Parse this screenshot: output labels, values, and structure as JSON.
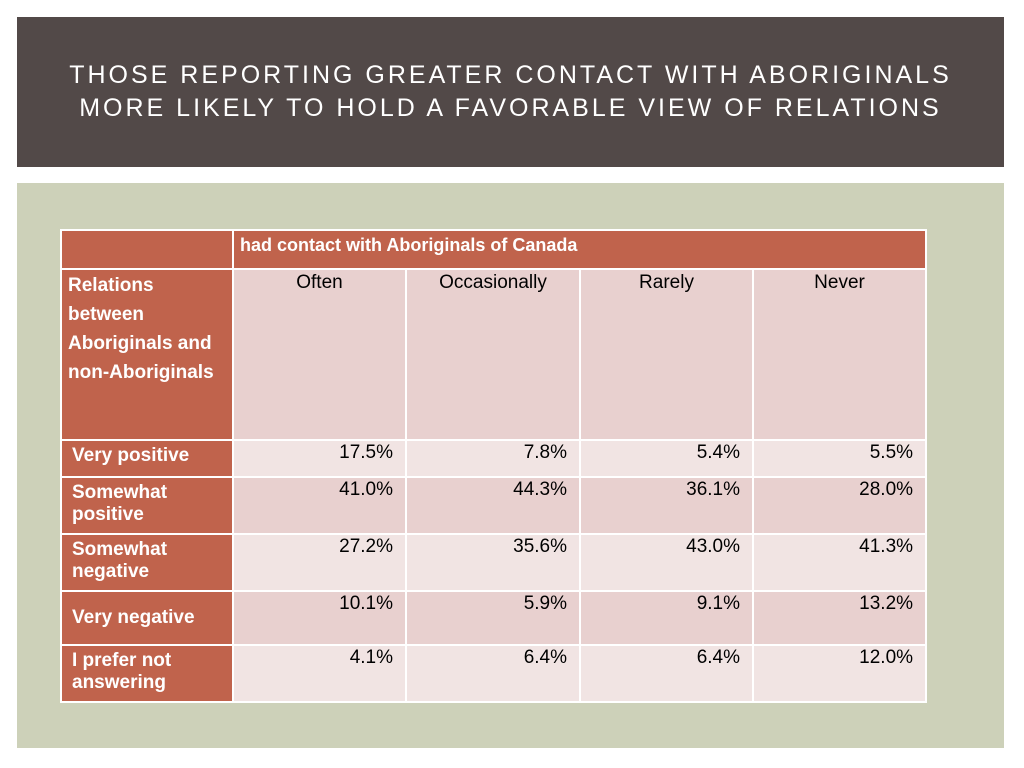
{
  "title": {
    "line1": "THOSE REPORTING GREATER CONTACT WITH ABORIGINALS",
    "line2": "MORE LIKELY TO HOLD A FAVORABLE VIEW OF RELATIONS"
  },
  "table": {
    "group_header": "had contact with Aboriginals of Canada",
    "row_header": "Relations between Aboriginals and non-Aboriginals",
    "columns": [
      "Often",
      "Occasionally",
      "Rarely",
      "Never"
    ],
    "rows": [
      {
        "label": "Very positive",
        "values": [
          "17.5%",
          "7.8%",
          "5.4%",
          "5.5%"
        ]
      },
      {
        "label": "Somewhat positive",
        "values": [
          "41.0%",
          "44.3%",
          "36.1%",
          "28.0%"
        ]
      },
      {
        "label": "Somewhat negative",
        "values": [
          "27.2%",
          "35.6%",
          "43.0%",
          "41.3%"
        ]
      },
      {
        "label": "Very negative",
        "values": [
          "10.1%",
          "5.9%",
          "9.1%",
          "13.2%"
        ]
      },
      {
        "label": "I prefer not answering",
        "values": [
          "4.1%",
          "6.4%",
          "6.4%",
          "12.0%"
        ]
      }
    ]
  },
  "colors": {
    "title_bg": "#524948",
    "content_bg": "#cdd1b9",
    "header_red": "#c0634c",
    "cell_dark": "#e8d0cf",
    "cell_light": "#f1e4e3"
  }
}
